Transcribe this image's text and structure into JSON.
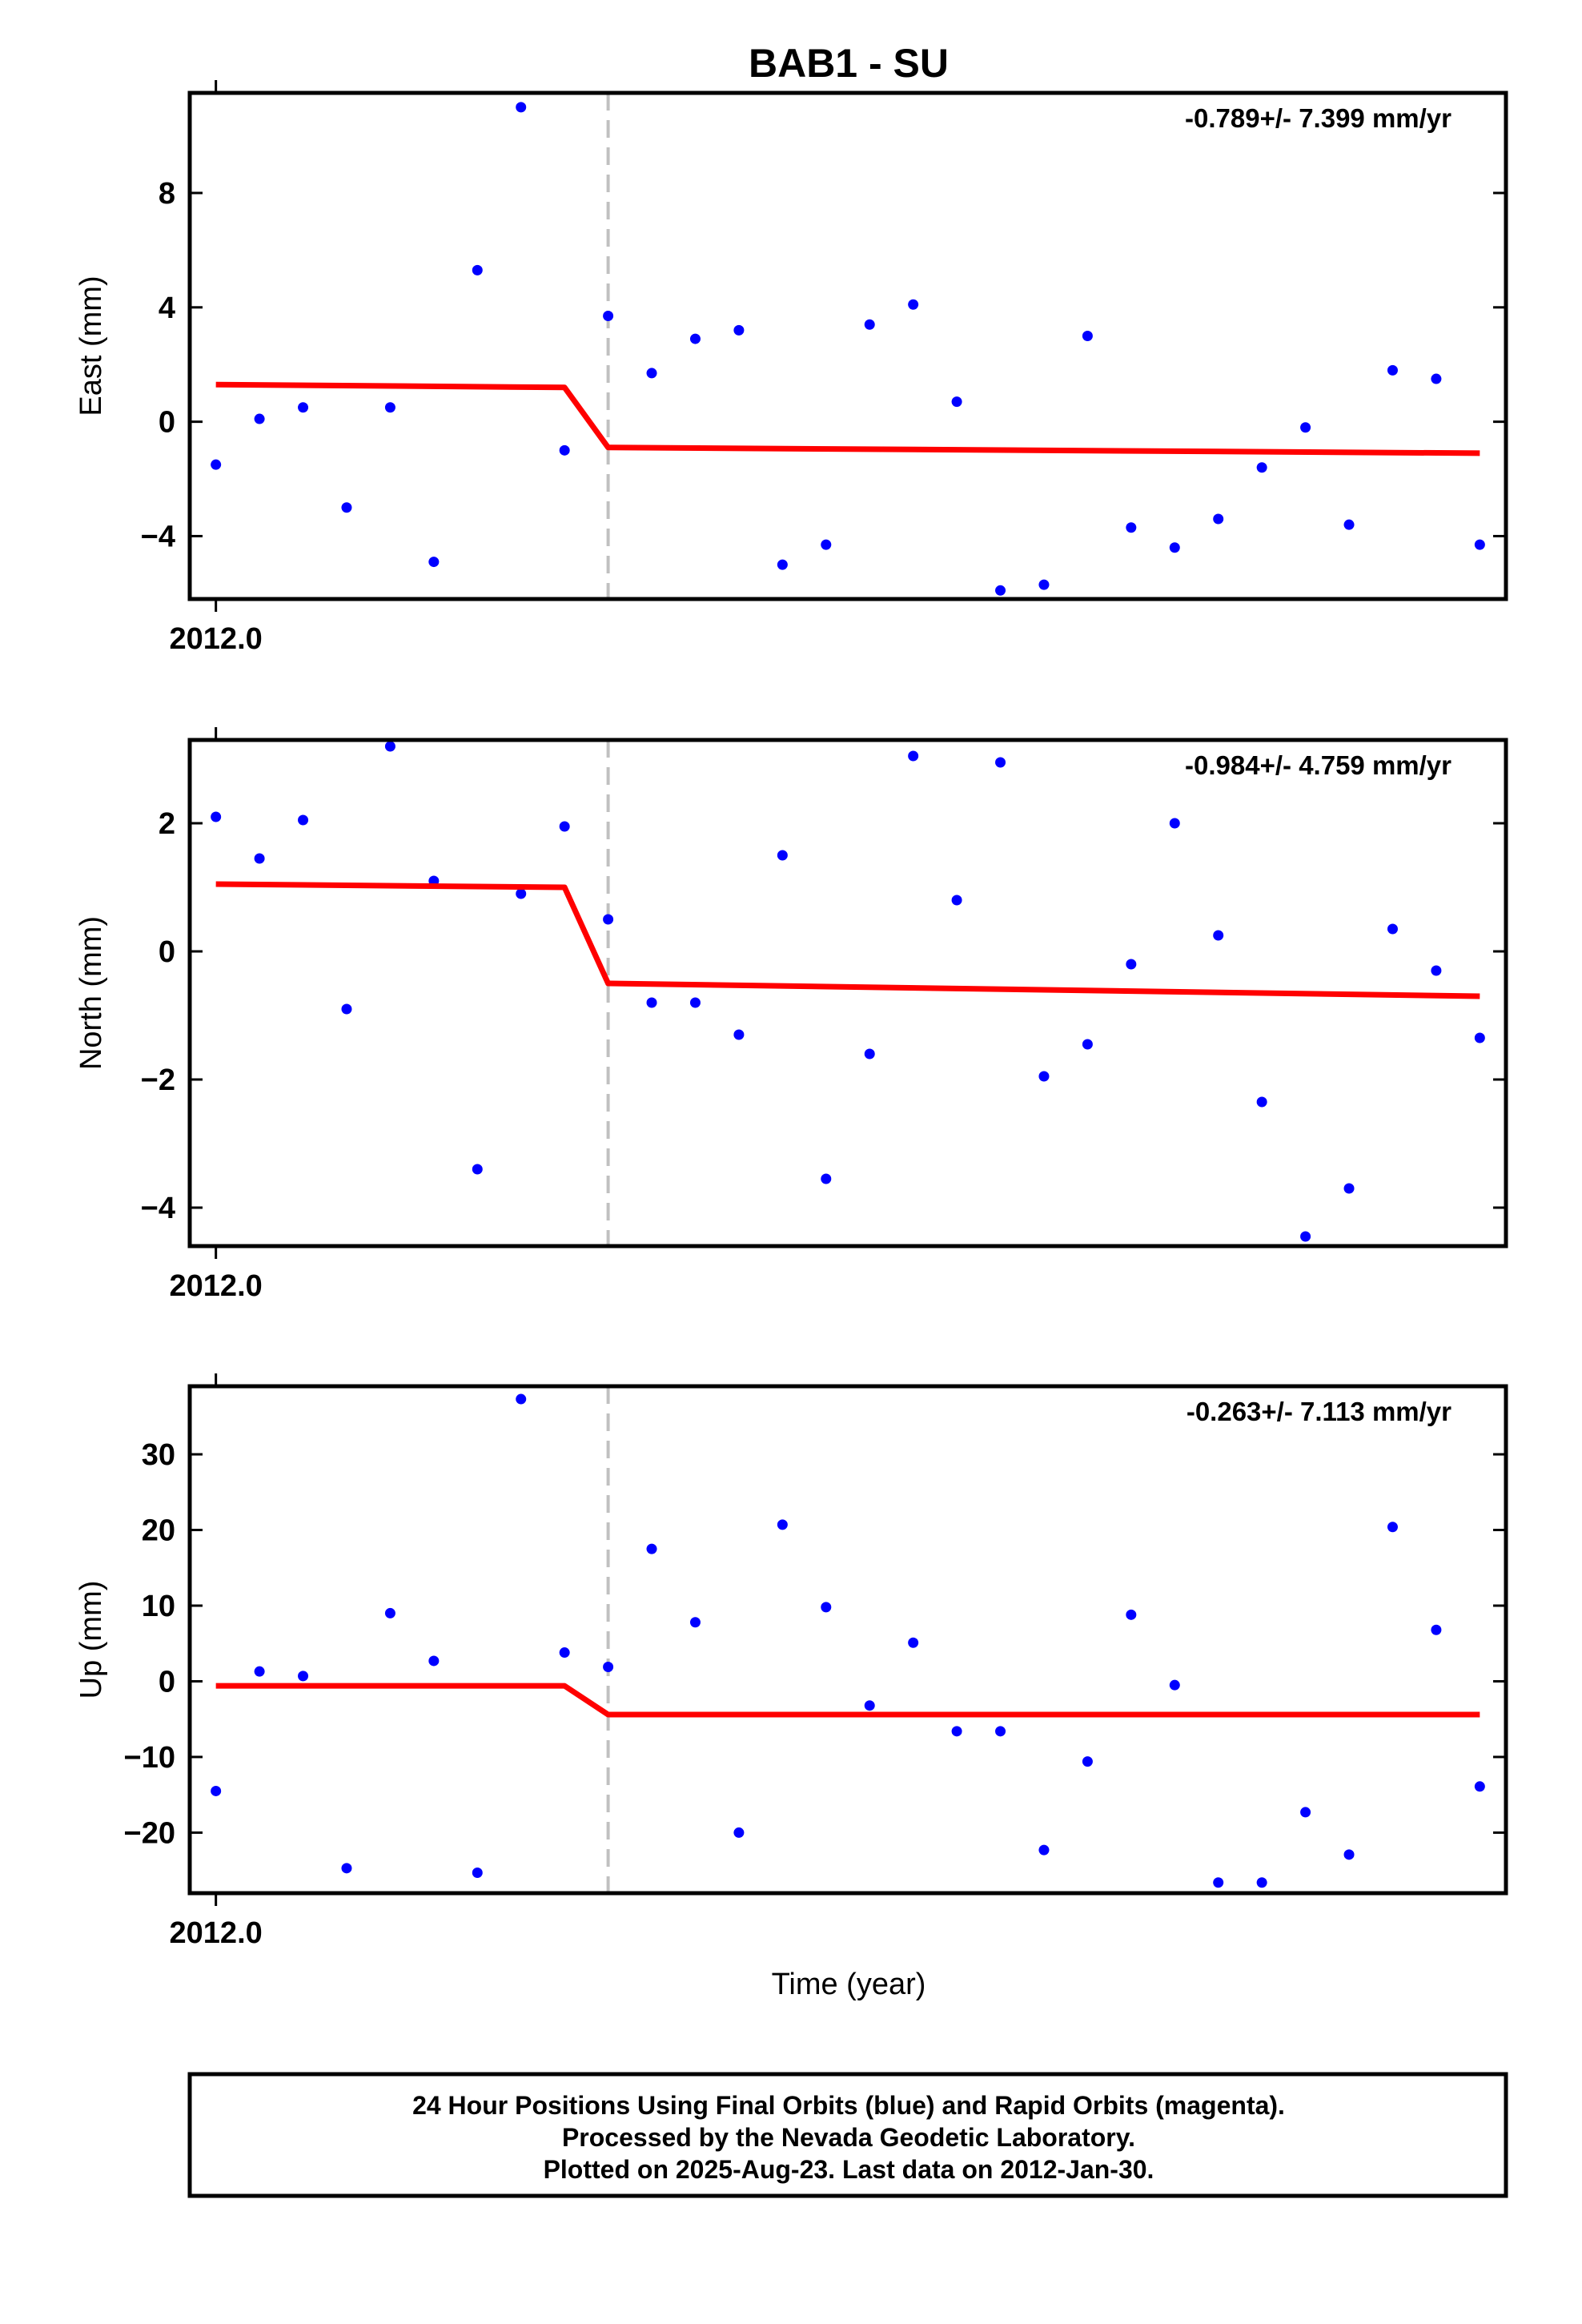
{
  "title": "BAB1 - SU",
  "xlabel": "Time (year)",
  "caption": [
    "24 Hour Positions Using Final Orbits (blue) and Rapid Orbits (magenta).",
    "Processed by the Nevada Geodetic Laboratory.",
    "Plotted on 2025-Aug-23. Last data on 2012-Jan-30."
  ],
  "colors": {
    "points": "#0000ff",
    "fit": "#ff0000",
    "break_line": "#c0c0c0",
    "frame": "#000000"
  },
  "chart_data": [
    {
      "type": "scatter",
      "ylabel": "East (mm)",
      "rate": "-0.789+/- 7.399 mm/yr",
      "xlim": [
        -0.6,
        29.6
      ],
      "ylim": [
        -6.2,
        11.5
      ],
      "yticks": [
        -4,
        0,
        4,
        8
      ],
      "ytick_labels": [
        "−4",
        "0",
        "4",
        "8"
      ],
      "xtick_label": "2012.0",
      "break_x": 9,
      "series": [
        {
          "kind": "points",
          "x": [
            0,
            1,
            2,
            3,
            4,
            5,
            6,
            7,
            8,
            9,
            10,
            11,
            12,
            13,
            14,
            15,
            16,
            17,
            18,
            19,
            20,
            21,
            22,
            23,
            24,
            25,
            26,
            27,
            28,
            29
          ],
          "y": [
            -1.5,
            0.1,
            0.5,
            -3.0,
            0.5,
            -4.9,
            5.3,
            11.0,
            -1.0,
            3.7,
            1.7,
            2.9,
            3.2,
            -5.0,
            -4.3,
            3.4,
            4.1,
            0.7,
            -5.9,
            -5.7,
            3.0,
            -3.7,
            -4.4,
            -3.4,
            -1.6,
            -0.2,
            -3.6,
            1.8,
            1.5,
            -4.3
          ]
        },
        {
          "kind": "fit",
          "x": [
            0,
            8,
            9,
            29
          ],
          "y": [
            1.3,
            1.2,
            -0.9,
            -1.1
          ]
        }
      ]
    },
    {
      "type": "scatter",
      "ylabel": "North (mm)",
      "rate": "-0.984+/- 4.759 mm/yr",
      "xlim": [
        -0.6,
        29.6
      ],
      "ylim": [
        -4.6,
        3.3
      ],
      "yticks": [
        -4,
        -2,
        0,
        2
      ],
      "ytick_labels": [
        "−4",
        "−2",
        "0",
        "2"
      ],
      "xtick_label": "2012.0",
      "break_x": 9,
      "series": [
        {
          "kind": "points",
          "x": [
            0,
            1,
            2,
            3,
            4,
            5,
            6,
            7,
            8,
            9,
            10,
            11,
            12,
            13,
            14,
            15,
            16,
            17,
            18,
            19,
            20,
            21,
            22,
            23,
            24,
            25,
            26,
            27,
            28,
            29
          ],
          "y": [
            2.1,
            1.45,
            2.05,
            -0.9,
            3.2,
            1.1,
            -3.4,
            0.9,
            1.95,
            0.5,
            -0.8,
            -0.8,
            -1.3,
            1.5,
            -3.55,
            -1.6,
            3.05,
            0.8,
            2.95,
            -1.95,
            -1.45,
            -0.2,
            2.0,
            0.25,
            -2.35,
            -4.45,
            -3.7,
            0.35,
            -0.3,
            -1.35
          ]
        },
        {
          "kind": "fit",
          "x": [
            0,
            8,
            9,
            29
          ],
          "y": [
            1.05,
            1.0,
            -0.5,
            -0.7
          ]
        }
      ]
    },
    {
      "type": "scatter",
      "ylabel": "Up (mm)",
      "rate": "-0.263+/- 7.113 mm/yr",
      "xlim": [
        -0.6,
        29.6
      ],
      "ylim": [
        -28,
        39
      ],
      "yticks": [
        -20,
        -10,
        0,
        10,
        20,
        30
      ],
      "ytick_labels": [
        "−20",
        "−10",
        "0",
        "10",
        "20",
        "30"
      ],
      "xtick_label": "2012.0",
      "break_x": 9,
      "series": [
        {
          "kind": "points",
          "x": [
            0,
            1,
            2,
            3,
            4,
            5,
            6,
            7,
            8,
            9,
            10,
            11,
            12,
            13,
            14,
            15,
            16,
            17,
            18,
            19,
            20,
            21,
            22,
            23,
            24,
            25,
            26,
            27,
            28,
            29
          ],
          "y": [
            -14.5,
            1.3,
            0.7,
            -24.7,
            9.0,
            2.7,
            -25.3,
            37.3,
            3.8,
            1.9,
            17.5,
            7.8,
            -20.0,
            20.7,
            9.8,
            -3.2,
            5.1,
            -6.6,
            -6.6,
            -22.3,
            -10.6,
            8.8,
            -0.5,
            -26.6,
            -26.6,
            -17.3,
            -22.9,
            20.4,
            6.8,
            -13.9
          ]
        },
        {
          "kind": "fit",
          "x": [
            0,
            8,
            9,
            29
          ],
          "y": [
            -0.6,
            -0.6,
            -4.4,
            -4.4
          ]
        }
      ]
    }
  ]
}
